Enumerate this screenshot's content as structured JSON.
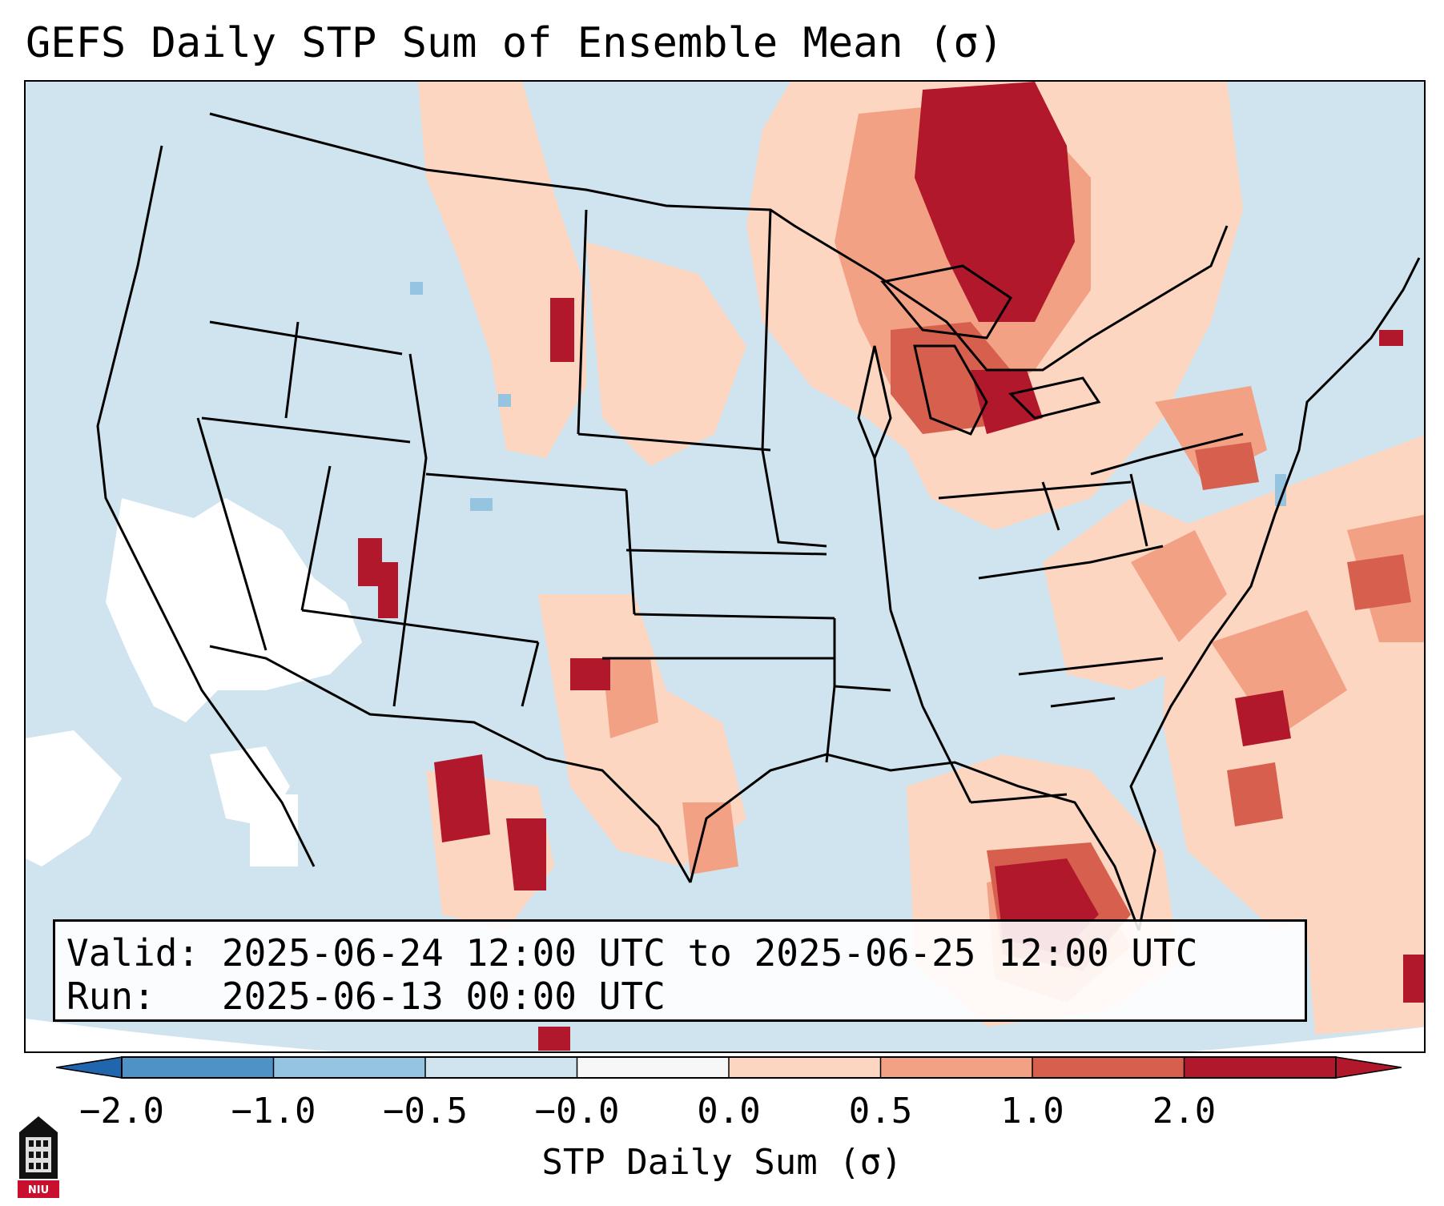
{
  "title": "GEFS Daily STP Sum of Ensemble Mean (σ)",
  "info": {
    "valid_label": "Valid:",
    "valid_text": "2025-06-24 12:00 UTC to 2025-06-25 12:00 UTC",
    "run_label": "Run:",
    "run_text": "2025-06-13 00:00 UTC"
  },
  "colorbar": {
    "label": "STP Daily Sum (σ)",
    "ticks": [
      "−2.0",
      "−1.0",
      "−0.5",
      "−0.0",
      "0.0",
      "0.5",
      "1.0",
      "2.0"
    ],
    "colors": [
      "#4f93c6",
      "#94c4df",
      "#d0e4f0",
      "#f7f7f7",
      "#fcd6c0",
      "#f2a184",
      "#d6604d",
      "#b2182b"
    ],
    "extend_low_color": "#2166ac",
    "extend_high_color": "#b2182b"
  },
  "legend_colors": {
    "background_domain": "#d0e4f0",
    "near_zero": "#ffffff",
    "weak_positive": "#fcd6c0",
    "moderate_positive": "#f2a184",
    "strong_positive": "#d6604d",
    "extreme_positive": "#b2182b",
    "negative": "#94c4df"
  },
  "regions_description_free": true,
  "logo": {
    "text": "NIU",
    "icon": "niu-logo-icon"
  }
}
